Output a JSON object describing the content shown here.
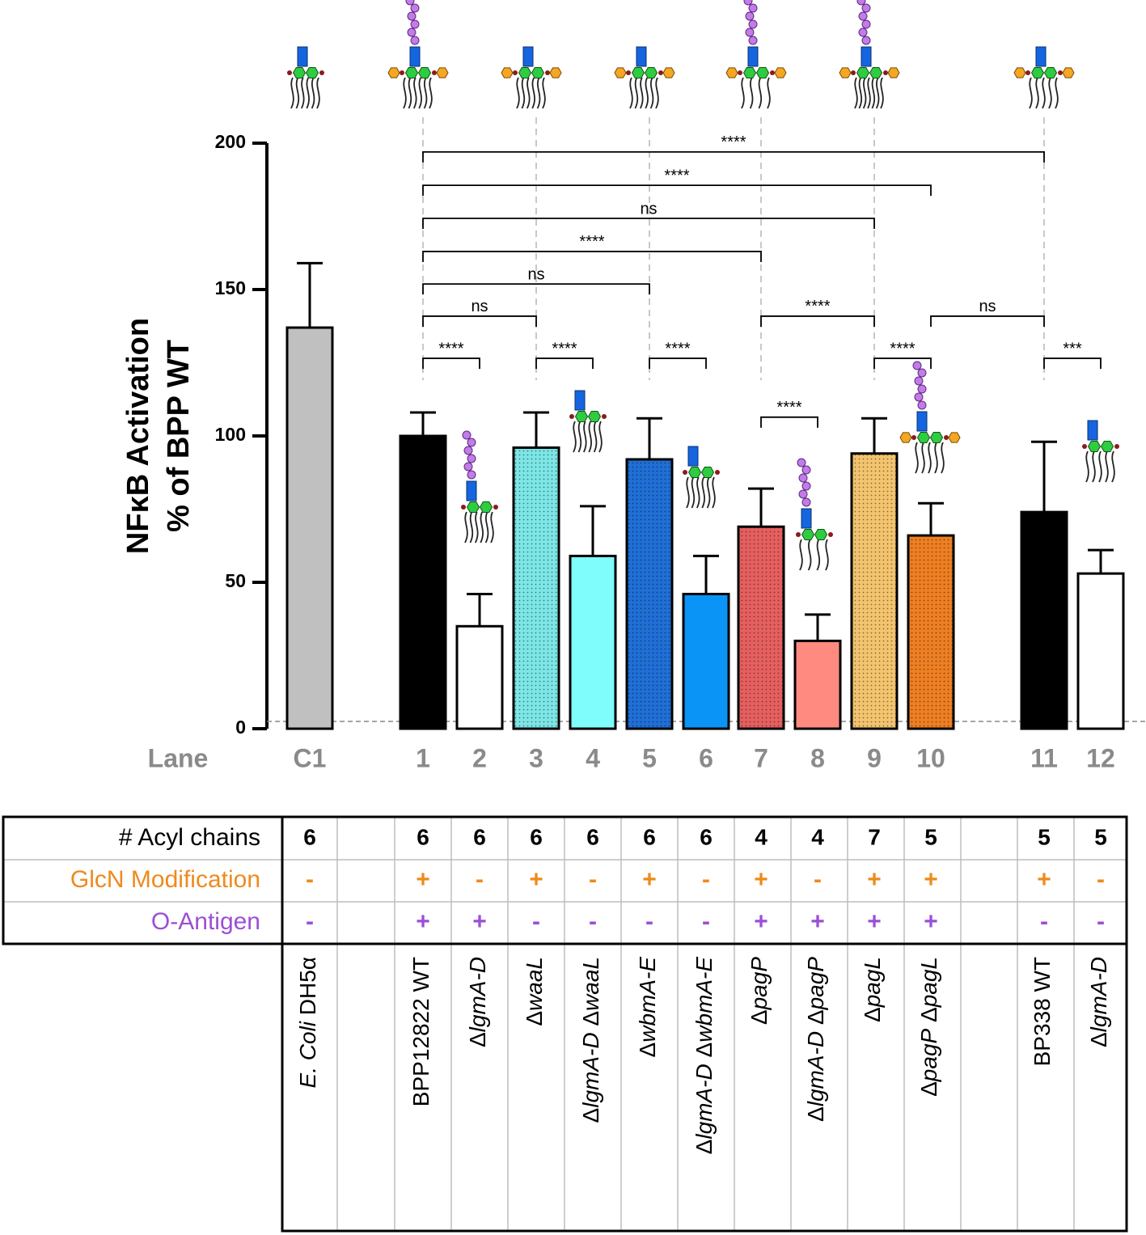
{
  "chart_data": {
    "type": "bar",
    "y_label_lines": [
      "NFκB Activation",
      "% of BPP WT"
    ],
    "x_label": "Lane",
    "categories": [
      "C1",
      "1",
      "2",
      "3",
      "4",
      "5",
      "6",
      "7",
      "8",
      "9",
      "10",
      "11",
      "12"
    ],
    "values": [
      137,
      100,
      35,
      96,
      59,
      92,
      46,
      69,
      30,
      94,
      66,
      74,
      53
    ],
    "errors": [
      22,
      8,
      11,
      12,
      17,
      14,
      13,
      13,
      9,
      12,
      11,
      24,
      8
    ],
    "colors": [
      "#c0c0c0",
      "#000000",
      "#ffffff",
      "#7de6e6",
      "#7ffcfc",
      "#1f6fd6",
      "#0a94f5",
      "#e65f5f",
      "#ff8a80",
      "#f3c46e",
      "#ee7f22",
      "#000000",
      "#ffffff"
    ],
    "textured": [
      false,
      false,
      false,
      true,
      false,
      true,
      false,
      true,
      false,
      true,
      true,
      false,
      false
    ],
    "ylim": [
      0,
      200
    ],
    "yticks": [
      0,
      50,
      100,
      150,
      200
    ],
    "baseline": 2.5,
    "significance": [
      {
        "from": "1",
        "to": "11",
        "label": "****",
        "y": 197
      },
      {
        "from": "1",
        "to": "10",
        "label": "****",
        "y": 185.6
      },
      {
        "from": "1",
        "to": "9",
        "label": "ns",
        "y": 174.3
      },
      {
        "from": "1",
        "to": "7",
        "label": "****",
        "y": 163
      },
      {
        "from": "1",
        "to": "5",
        "label": "ns",
        "y": 151.9
      },
      {
        "from": "1",
        "to": "3",
        "label": "ns",
        "y": 140.9
      },
      {
        "from": "7",
        "to": "9",
        "label": "****",
        "y": 140.9
      },
      {
        "from": "10",
        "to": "11",
        "label": "ns",
        "y": 140.9
      },
      {
        "from": "1",
        "to": "2",
        "label": "****",
        "y": 126.5
      },
      {
        "from": "3",
        "to": "4",
        "label": "****",
        "y": 126.5
      },
      {
        "from": "5",
        "to": "6",
        "label": "****",
        "y": 126.5
      },
      {
        "from": "9",
        "to": "10",
        "label": "****",
        "y": 126.5
      },
      {
        "from": "11",
        "to": "12",
        "label": "***",
        "y": 126.5
      },
      {
        "from": "7",
        "to": "8",
        "label": "****",
        "y": 106.4
      }
    ]
  },
  "table": {
    "row_labels": [
      "# Acyl chains",
      "GlcN Modification",
      "O-Antigen"
    ],
    "row_colors": [
      "#000000",
      "#ee8a1c",
      "#9b4fd6"
    ],
    "rows": [
      [
        "6",
        "6",
        "6",
        "6",
        "6",
        "6",
        "6",
        "4",
        "4",
        "7",
        "5",
        "5",
        "5"
      ],
      [
        "-",
        "+",
        "-",
        "+",
        "-",
        "+",
        "-",
        "+",
        "-",
        "+",
        "+",
        "+",
        "-"
      ],
      [
        "-",
        "+",
        "+",
        "-",
        "-",
        "-",
        "-",
        "+",
        "+",
        "+",
        "+",
        "-",
        "-"
      ]
    ],
    "strains": [
      [
        {
          "text": "E. Coli",
          "italic": true
        },
        {
          "text": " DH5α"
        }
      ],
      [
        {
          "text": "BPP12822 WT"
        }
      ],
      [
        {
          "text": "Δ"
        },
        {
          "text": "lgmA-D",
          "italic": true
        }
      ],
      [
        {
          "text": "Δ"
        },
        {
          "text": "waaL",
          "italic": true
        }
      ],
      [
        {
          "text": "Δ"
        },
        {
          "text": "lgmA-D",
          "italic": true
        },
        {
          "text": " Δ"
        },
        {
          "text": "waaL",
          "italic": true
        }
      ],
      [
        {
          "text": "Δ"
        },
        {
          "text": "wbmA-E",
          "italic": true
        }
      ],
      [
        {
          "text": "Δ"
        },
        {
          "text": "lgmA-D",
          "italic": true
        },
        {
          "text": " Δ"
        },
        {
          "text": "wbmA-E",
          "italic": true
        }
      ],
      [
        {
          "text": "Δ"
        },
        {
          "text": "pagP",
          "italic": true
        }
      ],
      [
        {
          "text": "Δ"
        },
        {
          "text": "lgmA-D",
          "italic": true
        },
        {
          "text": " Δ"
        },
        {
          "text": "pagP",
          "italic": true
        }
      ],
      [
        {
          "text": "Δ"
        },
        {
          "text": "pagL",
          "italic": true
        }
      ],
      [
        {
          "text": "Δ"
        },
        {
          "text": "pagP",
          "italic": true
        },
        {
          "text": " Δ"
        },
        {
          "text": "pagL",
          "italic": true
        }
      ],
      [
        {
          "text": "BP338 WT"
        }
      ],
      [
        {
          "text": "Δ"
        },
        {
          "text": "lgmA-D",
          "italic": true
        }
      ]
    ]
  }
}
